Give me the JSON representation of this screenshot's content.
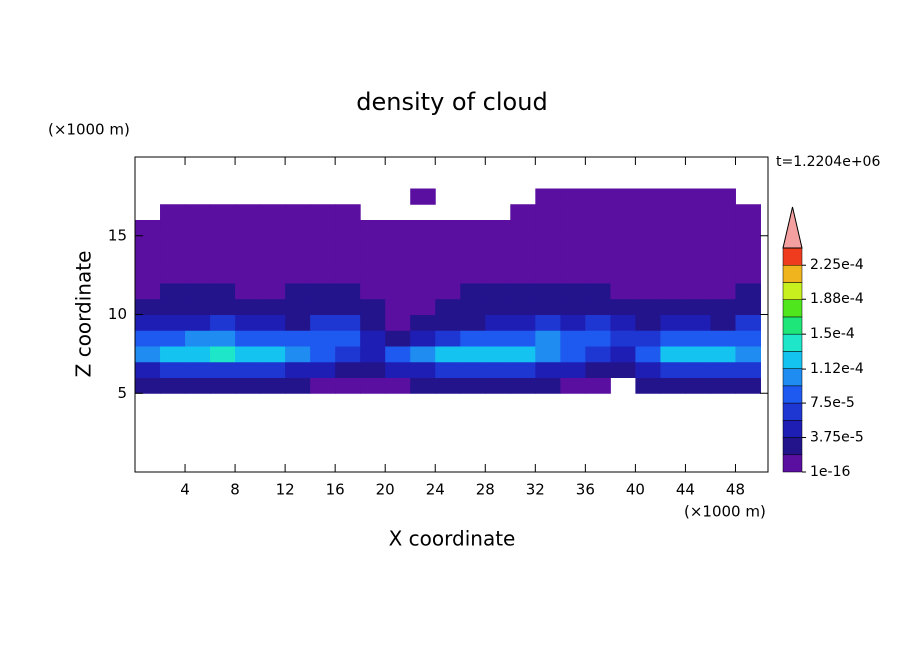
{
  "chart_data": {
    "type": "contour",
    "title": "density of cloud",
    "x_label": "X coordinate",
    "y_label": "Z coordinate",
    "x_unit_label": "(×1000 m)",
    "y_unit_label": "(×1000 m)",
    "time_label": "t=1.2204e+06",
    "xlim": [
      0,
      50.6
    ],
    "ylim": [
      0,
      20
    ],
    "xticks": [
      4,
      8,
      12,
      16,
      20,
      24,
      28,
      32,
      36,
      40,
      44,
      48
    ],
    "yticks": [
      5,
      10,
      15
    ],
    "levels": [
      1e-16,
      1.875e-05,
      3.75e-05,
      5.625e-05,
      7.5e-05,
      9.375e-05,
      0.0001125,
      0.00013125,
      0.00015,
      0.00016875,
      0.0001875,
      0.00020625,
      0.000225,
      0.00024375
    ],
    "colors": [
      "#5a0fa0",
      "#23148c",
      "#1e1eb4",
      "#1e37d2",
      "#1e5af0",
      "#1e8cf0",
      "#14c3f0",
      "#1ee6c8",
      "#1ee678",
      "#50e61e",
      "#c8f01e",
      "#f0b41e",
      "#f03c1e"
    ],
    "overflow_color": "#f4a0a0",
    "colorbar_ticks": [
      {
        "value": 1e-16,
        "label": "1e-16"
      },
      {
        "value": 3.75e-05,
        "label": "3.75e-5"
      },
      {
        "value": 7.5e-05,
        "label": "7.5e-5"
      },
      {
        "value": 0.000112,
        "label": "1.12e-4"
      },
      {
        "value": 0.00015,
        "label": "1.5e-4"
      },
      {
        "value": 0.000188,
        "label": "1.88e-4"
      },
      {
        "value": 0.000225,
        "label": "2.25e-4"
      }
    ],
    "field": {
      "x": [
        1,
        3,
        5,
        7,
        9,
        11,
        13,
        15,
        17,
        19,
        21,
        23,
        25,
        27,
        29,
        31,
        33,
        35,
        37,
        39,
        41,
        43,
        45,
        47,
        49
      ],
      "z": [
        5.5,
        6.5,
        7.5,
        8.5,
        9.5,
        10.5,
        11.5,
        12.5,
        13.5,
        14.5,
        15.5,
        16.5,
        17.5
      ],
      "values": [
        [
          2e-05,
          2.5e-05,
          2.5e-05,
          3e-05,
          3e-05,
          2.5e-05,
          2e-05,
          1.5e-05,
          1.5e-05,
          1e-05,
          1.5e-05,
          2e-05,
          2.5e-05,
          3e-05,
          3e-05,
          2.5e-05,
          2e-05,
          1.5e-05,
          1e-05,
          null,
          2e-05,
          2.5e-05,
          3e-05,
          3e-05,
          2.5e-05
        ],
        [
          5e-05,
          6e-05,
          6.5e-05,
          7e-05,
          7e-05,
          6.5e-05,
          5e-05,
          4e-05,
          3e-05,
          2.5e-05,
          4e-05,
          5.5e-05,
          6.5e-05,
          7e-05,
          7e-05,
          6.5e-05,
          5.5e-05,
          4.5e-05,
          3e-05,
          2e-05,
          5e-05,
          6.5e-05,
          7e-05,
          7e-05,
          6e-05
        ],
        [
          0.0001,
          0.00012,
          0.00013,
          0.000135,
          0.00013,
          0.00012,
          0.0001,
          8e-05,
          6e-05,
          5e-05,
          8e-05,
          0.00011,
          0.000125,
          0.00013,
          0.000125,
          0.000115,
          0.0001,
          8e-05,
          6e-05,
          4e-05,
          9e-05,
          0.000115,
          0.000125,
          0.00013,
          0.00011
        ],
        [
          8e-05,
          9e-05,
          0.0001,
          0.0001,
          9e-05,
          8e-05,
          8e-05,
          9e-05,
          8e-05,
          4e-05,
          3e-05,
          5e-05,
          7e-05,
          8e-05,
          8e-05,
          9e-05,
          0.0001,
          8e-05,
          8e-05,
          6e-05,
          7e-05,
          9e-05,
          9e-05,
          8e-05,
          9e-05
        ],
        [
          4e-05,
          5e-05,
          5e-05,
          6e-05,
          5e-05,
          4e-05,
          3.5e-05,
          6e-05,
          7e-05,
          3e-05,
          1.5e-05,
          2e-05,
          3e-05,
          3e-05,
          4e-05,
          5e-05,
          6e-05,
          5e-05,
          6e-05,
          4e-05,
          3e-05,
          4e-05,
          4e-05,
          3e-05,
          6e-05
        ],
        [
          2e-05,
          3e-05,
          2.5e-05,
          3e-05,
          2.5e-05,
          2e-05,
          2e-05,
          3e-05,
          3e-05,
          2e-05,
          1e-05,
          1.5e-05,
          2e-05,
          2e-05,
          2.5e-05,
          3e-05,
          3e-05,
          2.5e-05,
          3e-05,
          2.5e-05,
          2e-05,
          2e-05,
          2e-05,
          2e-05,
          3e-05
        ],
        [
          1.5e-05,
          2e-05,
          2e-05,
          2e-05,
          1.5e-05,
          1.5e-05,
          2e-05,
          2e-05,
          2e-05,
          1.5e-05,
          1e-05,
          1e-05,
          1.5e-05,
          2e-05,
          2e-05,
          2e-05,
          2e-05,
          2e-05,
          2e-05,
          1.5e-05,
          1.5e-05,
          1.5e-05,
          1.5e-05,
          1.5e-05,
          2e-05
        ],
        [
          1e-05,
          1.5e-05,
          1e-05,
          1e-05,
          1.5e-05,
          1e-05,
          1e-05,
          1e-05,
          1.5e-05,
          1e-05,
          1e-05,
          1e-05,
          1e-05,
          1.5e-05,
          1.5e-05,
          1e-05,
          1e-05,
          1e-05,
          1e-05,
          1e-05,
          1e-05,
          1e-05,
          1e-05,
          1e-05,
          1e-05
        ],
        [
          8e-06,
          8e-06,
          8e-06,
          8e-06,
          8e-06,
          8e-06,
          8e-06,
          8e-06,
          8e-06,
          8e-06,
          8e-06,
          8e-06,
          8e-06,
          8e-06,
          8e-06,
          8e-06,
          8e-06,
          8e-06,
          8e-06,
          8e-06,
          8e-06,
          8e-06,
          8e-06,
          8e-06,
          8e-06
        ],
        [
          8e-06,
          8e-06,
          8e-06,
          8e-06,
          8e-06,
          8e-06,
          8e-06,
          8e-06,
          8e-06,
          8e-06,
          8e-06,
          8e-06,
          8e-06,
          8e-06,
          8e-06,
          8e-06,
          8e-06,
          8e-06,
          8e-06,
          8e-06,
          8e-06,
          8e-06,
          8e-06,
          8e-06,
          8e-06
        ],
        [
          8e-06,
          8e-06,
          8e-06,
          8e-06,
          8e-06,
          8e-06,
          8e-06,
          8e-06,
          8e-06,
          8e-06,
          8e-06,
          8e-06,
          8e-06,
          8e-06,
          8e-06,
          8e-06,
          8e-06,
          8e-06,
          8e-06,
          8e-06,
          8e-06,
          8e-06,
          8e-06,
          8e-06,
          8e-06
        ],
        [
          null,
          5e-06,
          5e-06,
          5e-06,
          5e-06,
          5e-06,
          5e-06,
          5e-06,
          5e-06,
          null,
          null,
          null,
          null,
          null,
          null,
          5e-06,
          5e-06,
          5e-06,
          5e-06,
          5e-06,
          5e-06,
          5e-06,
          5e-06,
          5e-06,
          5e-06
        ],
        [
          null,
          null,
          null,
          null,
          null,
          null,
          null,
          null,
          null,
          null,
          null,
          5e-06,
          null,
          null,
          null,
          null,
          5e-06,
          5e-06,
          5e-06,
          5e-06,
          5e-06,
          5e-06,
          5e-06,
          5e-06,
          null
        ]
      ]
    }
  }
}
